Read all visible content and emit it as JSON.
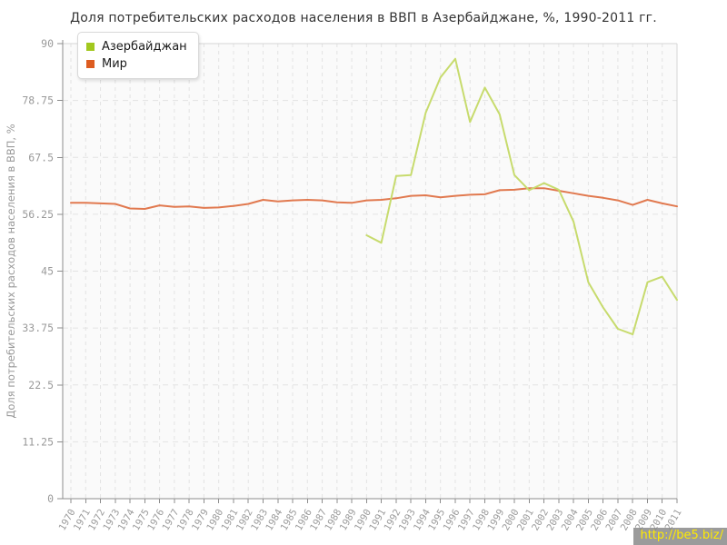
{
  "page": {
    "title": "Доля потребительских расходов населения в ВВП в Азербайджане, %, 1990-2011 гг.",
    "watermark": "http://be5.biz/"
  },
  "colors": {
    "title_text": "#333333",
    "tick_label": "#9a9a9a",
    "axis_line": "#8c8c8c",
    "plot_border_light": "#d6d6d6",
    "grid_line": "#e3e3e3",
    "plot_background": "#fafafa",
    "legend_text": "#1a1a1a",
    "watermark_bg": "#8a8a8a",
    "watermark_text": "#ffeb00"
  },
  "chart_data": {
    "type": "line",
    "title": "Доля потребительских расходов населения в ВВП в Азербайджане, %, 1990-2011 гг.",
    "xlabel": "",
    "ylabel": "Доля потребительских расходов населения в ВВП, %",
    "ylim": [
      0,
      90
    ],
    "yticks": [
      "0",
      "11.25",
      "22.5",
      "33.75",
      "45",
      "56.25",
      "67.5",
      "78.75",
      "90"
    ],
    "grid": true,
    "grid_style": "dashed",
    "legend_position": "top-left",
    "x": [
      1970,
      1971,
      1972,
      1973,
      1974,
      1975,
      1976,
      1977,
      1978,
      1979,
      1980,
      1981,
      1982,
      1983,
      1984,
      1985,
      1986,
      1987,
      1988,
      1989,
      1990,
      1991,
      1992,
      1993,
      1994,
      1995,
      1996,
      1997,
      1998,
      1999,
      2000,
      2001,
      2002,
      2003,
      2004,
      2005,
      2006,
      2007,
      2008,
      2009,
      2010,
      2011
    ],
    "series": [
      {
        "name": "Азербайджан",
        "swatch_color": "#a2c81e",
        "line_color": "#c7db6d",
        "x_start": 1990,
        "x": [
          1990,
          1991,
          1992,
          1993,
          1994,
          1995,
          1996,
          1997,
          1998,
          1999,
          2000,
          2001,
          2002,
          2003,
          2004,
          2005,
          2006,
          2007,
          2008,
          2009,
          2010,
          2011
        ],
        "values": [
          52.1,
          50.6,
          63.8,
          64.0,
          76.3,
          83.3,
          87.0,
          74.5,
          81.3,
          76.0,
          64.0,
          61.0,
          62.4,
          61.1,
          54.8,
          42.8,
          37.8,
          33.6,
          32.5,
          42.8,
          43.9,
          39.3
        ]
      },
      {
        "name": "Мир",
        "swatch_color": "#dd5c20",
        "line_color": "#e1794f",
        "x_start": 1970,
        "x": [
          1970,
          1971,
          1972,
          1973,
          1974,
          1975,
          1976,
          1977,
          1978,
          1979,
          1980,
          1981,
          1982,
          1983,
          1984,
          1985,
          1986,
          1987,
          1988,
          1989,
          1990,
          1991,
          1992,
          1993,
          1994,
          1995,
          1996,
          1997,
          1998,
          1999,
          2000,
          2001,
          2002,
          2003,
          2004,
          2005,
          2006,
          2007,
          2008,
          2009,
          2010,
          2011
        ],
        "values": [
          58.5,
          58.5,
          58.4,
          58.3,
          57.4,
          57.3,
          58.0,
          57.7,
          57.8,
          57.5,
          57.6,
          57.9,
          58.3,
          59.1,
          58.8,
          59.0,
          59.1,
          59.0,
          58.6,
          58.5,
          59.0,
          59.1,
          59.4,
          59.9,
          60.0,
          59.6,
          59.9,
          60.1,
          60.2,
          61.0,
          61.1,
          61.4,
          61.4,
          60.9,
          60.4,
          59.9,
          59.5,
          59.0,
          58.1,
          59.1,
          58.4,
          57.8
        ]
      }
    ]
  }
}
